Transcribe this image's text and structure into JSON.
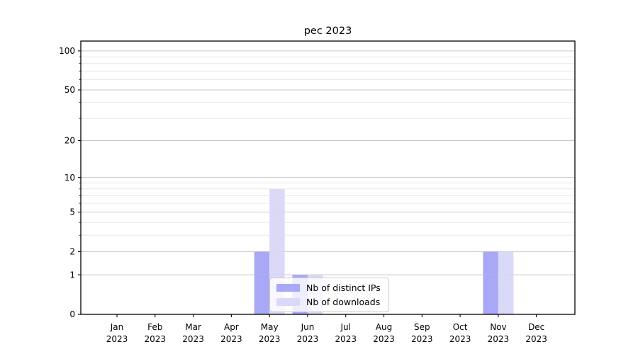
{
  "figure": {
    "background": "#ffffff",
    "title": "pec 2023"
  },
  "chart_data": {
    "type": "bar",
    "title": "pec 2023",
    "categories": [
      {
        "month": "Jan",
        "year": "2023"
      },
      {
        "month": "Feb",
        "year": "2023"
      },
      {
        "month": "Mar",
        "year": "2023"
      },
      {
        "month": "Apr",
        "year": "2023"
      },
      {
        "month": "May",
        "year": "2023"
      },
      {
        "month": "Jun",
        "year": "2023"
      },
      {
        "month": "Jul",
        "year": "2023"
      },
      {
        "month": "Aug",
        "year": "2023"
      },
      {
        "month": "Sep",
        "year": "2023"
      },
      {
        "month": "Oct",
        "year": "2023"
      },
      {
        "month": "Nov",
        "year": "2023"
      },
      {
        "month": "Dec",
        "year": "2023"
      }
    ],
    "series": [
      {
        "name": "Nb of distinct IPs",
        "color": "#a8a8f7",
        "values": [
          0,
          0,
          0,
          0,
          2,
          1,
          0,
          0,
          0,
          0,
          2,
          0
        ]
      },
      {
        "name": "Nb of downloads",
        "color": "#dadaf8",
        "values": [
          0,
          0,
          0,
          0,
          8,
          1,
          0,
          0,
          0,
          0,
          2,
          0
        ]
      }
    ],
    "yscale": "log1p",
    "ylim": [
      0,
      119
    ],
    "yticks": [
      0,
      1,
      2,
      5,
      10,
      20,
      50,
      100
    ],
    "yticks_minor": [
      3,
      4,
      6,
      7,
      8,
      9,
      30,
      40,
      60,
      70,
      80,
      90
    ],
    "xlabel": "",
    "ylabel": "",
    "grid": {
      "major_color": "#cbcbcb",
      "minor_color": "#e7e7e7",
      "visible": true
    },
    "legend": {
      "location": "lower center",
      "framealpha": 0.8
    }
  }
}
